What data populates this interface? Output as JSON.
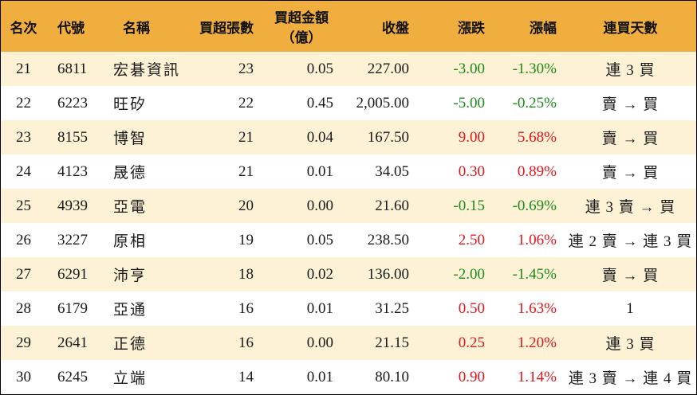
{
  "headers": {
    "rank": "名次",
    "code": "代號",
    "name": "名稱",
    "net_lots": "買超張數",
    "net_amount_line1": "買超金額",
    "net_amount_line2": "（億）",
    "close": "收盤",
    "change": "漲跌",
    "pct": "漲幅",
    "streak": "連買天數"
  },
  "colors": {
    "header_bg": "#f0ae3f",
    "stripe_bg": "#fdf2d6",
    "up": "#e0151b",
    "down": "#1b8a1b"
  },
  "rows": [
    {
      "rank": "21",
      "code": "6811",
      "name": "宏碁資訊",
      "net_lots": "23",
      "net_amount": "0.05",
      "close": "227.00",
      "change": "-3.00",
      "pct": "-1.30%",
      "dir": "down",
      "streak": "連 3 買"
    },
    {
      "rank": "22",
      "code": "6223",
      "name": "旺矽",
      "net_lots": "22",
      "net_amount": "0.45",
      "close": "2,005.00",
      "change": "-5.00",
      "pct": "-0.25%",
      "dir": "down",
      "streak": "賣 → 買"
    },
    {
      "rank": "23",
      "code": "8155",
      "name": "博智",
      "net_lots": "21",
      "net_amount": "0.04",
      "close": "167.50",
      "change": "9.00",
      "pct": "5.68%",
      "dir": "up",
      "streak": "賣 → 買"
    },
    {
      "rank": "24",
      "code": "4123",
      "name": "晟德",
      "net_lots": "21",
      "net_amount": "0.01",
      "close": "34.05",
      "change": "0.30",
      "pct": "0.89%",
      "dir": "up",
      "streak": "賣 → 買"
    },
    {
      "rank": "25",
      "code": "4939",
      "name": "亞電",
      "net_lots": "20",
      "net_amount": "0.00",
      "close": "21.60",
      "change": "-0.15",
      "pct": "-0.69%",
      "dir": "down",
      "streak": "連 3 賣 → 買"
    },
    {
      "rank": "26",
      "code": "3227",
      "name": "原相",
      "net_lots": "19",
      "net_amount": "0.05",
      "close": "238.50",
      "change": "2.50",
      "pct": "1.06%",
      "dir": "up",
      "streak": "連 2 賣 → 連 3 買"
    },
    {
      "rank": "27",
      "code": "6291",
      "name": "沛亨",
      "net_lots": "18",
      "net_amount": "0.02",
      "close": "136.00",
      "change": "-2.00",
      "pct": "-1.45%",
      "dir": "down",
      "streak": "賣 → 買"
    },
    {
      "rank": "28",
      "code": "6179",
      "name": "亞通",
      "net_lots": "16",
      "net_amount": "0.01",
      "close": "31.25",
      "change": "0.50",
      "pct": "1.63%",
      "dir": "up",
      "streak": "1"
    },
    {
      "rank": "29",
      "code": "2641",
      "name": "正德",
      "net_lots": "16",
      "net_amount": "0.00",
      "close": "21.15",
      "change": "0.25",
      "pct": "1.20%",
      "dir": "up",
      "streak": "連 3 買"
    },
    {
      "rank": "30",
      "code": "6245",
      "name": "立端",
      "net_lots": "14",
      "net_amount": "0.01",
      "close": "80.10",
      "change": "0.90",
      "pct": "1.14%",
      "dir": "up",
      "streak": "連 3 賣 → 連 4 買"
    }
  ]
}
